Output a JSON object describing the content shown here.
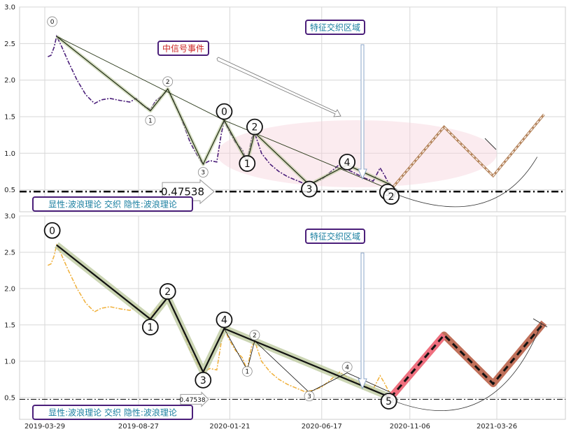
{
  "chart_data": [
    {
      "type": "line",
      "ylim": [
        0.2,
        3.0
      ],
      "yticks": [
        "3.0",
        "2.5",
        "2.0",
        "1.5",
        "1.0",
        "0.5"
      ],
      "price_color": "#4b1f7a",
      "price_points": [
        [
          "2019-04-03",
          2.32
        ],
        [
          "2019-04-08",
          2.34
        ],
        [
          "2019-04-13",
          2.45
        ],
        [
          "2019-04-17",
          2.6
        ],
        [
          "2019-04-24",
          2.48
        ],
        [
          "2019-05-06",
          2.25
        ],
        [
          "2019-05-20",
          2.0
        ],
        [
          "2019-06-03",
          1.8
        ],
        [
          "2019-06-17",
          1.68
        ],
        [
          "2019-06-28",
          1.73
        ],
        [
          "2019-07-12",
          1.75
        ],
        [
          "2019-07-29",
          1.72
        ],
        [
          "2019-08-13",
          1.7
        ],
        [
          "2019-08-23",
          1.75
        ],
        [
          "2019-09-05",
          1.64
        ],
        [
          "2019-09-15",
          1.6
        ],
        [
          "2019-09-24",
          1.72
        ],
        [
          "2019-10-06",
          1.8
        ],
        [
          "2019-10-13",
          1.88
        ],
        [
          "2019-10-22",
          1.72
        ],
        [
          "2019-11-03",
          1.5
        ],
        [
          "2019-11-18",
          1.15
        ],
        [
          "2019-12-01",
          0.95
        ],
        [
          "2019-12-09",
          0.85
        ],
        [
          "2019-12-20",
          0.9
        ],
        [
          "2019-12-31",
          0.88
        ],
        [
          "2020-01-07",
          1.25
        ],
        [
          "2020-01-12",
          1.45
        ],
        [
          "2020-01-20",
          1.3
        ],
        [
          "2020-01-30",
          1.15
        ],
        [
          "2020-02-10",
          1.05
        ],
        [
          "2020-02-18",
          0.88
        ],
        [
          "2020-02-25",
          1.2
        ],
        [
          "2020-03-01",
          1.28
        ],
        [
          "2020-03-12",
          1.0
        ],
        [
          "2020-03-26",
          0.85
        ],
        [
          "2020-04-09",
          0.75
        ],
        [
          "2020-04-23",
          0.68
        ],
        [
          "2020-05-07",
          0.63
        ],
        [
          "2020-05-21",
          0.58
        ],
        [
          "2020-06-04",
          0.6
        ],
        [
          "2020-06-18",
          0.65
        ],
        [
          "2020-07-02",
          0.75
        ],
        [
          "2020-07-16",
          0.85
        ],
        [
          "2020-07-28",
          0.78
        ],
        [
          "2020-08-11",
          0.72
        ],
        [
          "2020-08-25",
          0.66
        ],
        [
          "2020-09-08",
          0.62
        ],
        [
          "2020-09-19",
          0.8
        ],
        [
          "2020-09-26",
          0.7
        ],
        [
          "2020-10-02",
          0.6
        ],
        [
          "2020-10-06",
          0.57
        ]
      ],
      "wave_points": [
        [
          "2019-04-17",
          2.6
        ],
        [
          "2019-09-15",
          1.58
        ],
        [
          "2019-10-13",
          1.88
        ],
        [
          "2019-12-09",
          0.85
        ],
        [
          "2020-01-12",
          1.45
        ],
        [
          "2020-02-18",
          0.88
        ],
        [
          "2020-03-01",
          1.28
        ],
        [
          "2020-05-28",
          0.57
        ],
        [
          "2020-07-28",
          0.84
        ],
        [
          "2020-10-06",
          0.57
        ]
      ],
      "main_wave_points": [
        [
          "2019-04-17",
          2.6
        ],
        [
          "2020-01-12",
          1.45
        ],
        [
          "2020-10-06",
          0.5
        ]
      ],
      "projection_points": [
        [
          "2020-10-06",
          0.5
        ],
        [
          "2020-12-31",
          1.36
        ],
        [
          "2021-03-20",
          0.69
        ],
        [
          "2021-06-10",
          1.53
        ]
      ],
      "hline": 0.47538,
      "hline_label": "0.47538",
      "labels_small": [
        {
          "t": "0",
          "d": "2019-04-10",
          "v": 2.8
        },
        {
          "t": "1",
          "d": "2019-09-15",
          "v": 1.45
        },
        {
          "t": "2",
          "d": "2019-10-13",
          "v": 1.98
        },
        {
          "t": "3",
          "d": "2019-12-09",
          "v": 0.74
        },
        {
          "t": "0",
          "d": "2020-01-12",
          "v": 1.59
        },
        {
          "t": "5",
          "d": "2020-10-03",
          "v": 0.44
        },
        {
          "t": "2",
          "d": "2020-10-10",
          "v": 0.46
        }
      ],
      "labels_big": [
        {
          "t": "0",
          "d": "2020-01-12",
          "v": 1.57
        },
        {
          "t": "1",
          "d": "2020-02-18",
          "v": 0.86
        },
        {
          "t": "2",
          "d": "2020-03-01",
          "v": 1.36
        },
        {
          "t": "3",
          "d": "2020-05-28",
          "v": 0.51
        },
        {
          "t": "4",
          "d": "2020-07-28",
          "v": 0.88
        },
        {
          "t": "5",
          "d": "2020-10-01",
          "v": 0.47
        },
        {
          "t": "2",
          "d": "2020-10-07",
          "v": 0.41
        }
      ],
      "tag_signal": "中信号事件",
      "tag_zone": "特征交织区域",
      "tag_legend": "显性:波浪理论 交织 隐性:波浪理论"
    },
    {
      "type": "line",
      "ylim": [
        0.2,
        3.0
      ],
      "yticks": [
        "3.0",
        "2.5",
        "2.0",
        "1.5",
        "1.0",
        "0.5"
      ],
      "xticks": [
        "2019-03-29",
        "2019-08-27",
        "2020-01-21",
        "2020-06-17",
        "2020-11-06",
        "2021-03-26"
      ],
      "price_color": "#f0b03a",
      "main_wave_points": [
        [
          "2019-04-17",
          2.6
        ],
        [
          "2019-09-15",
          1.58
        ],
        [
          "2019-10-13",
          1.88
        ],
        [
          "2019-12-09",
          0.85
        ],
        [
          "2020-01-12",
          1.45
        ],
        [
          "2020-10-06",
          0.5
        ]
      ],
      "sub_wave_points": [
        [
          "2020-01-12",
          1.45
        ],
        [
          "2020-02-18",
          0.88
        ],
        [
          "2020-03-01",
          1.28
        ],
        [
          "2020-05-28",
          0.57
        ],
        [
          "2020-07-28",
          0.84
        ],
        [
          "2020-10-06",
          0.57
        ]
      ],
      "projection_points": [
        [
          "2020-10-06",
          0.5
        ],
        [
          "2020-12-31",
          1.36
        ],
        [
          "2021-03-20",
          0.69
        ],
        [
          "2021-06-10",
          1.53
        ]
      ],
      "hline": 0.47538,
      "hline_label": "0.47538",
      "labels_big": [
        {
          "t": "0",
          "d": "2019-04-10",
          "v": 2.8
        },
        {
          "t": "1",
          "d": "2019-09-15",
          "v": 1.47
        },
        {
          "t": "2",
          "d": "2019-10-13",
          "v": 1.96
        },
        {
          "t": "3",
          "d": "2019-12-09",
          "v": 0.74
        },
        {
          "t": "4",
          "d": "2020-01-12",
          "v": 1.57
        },
        {
          "t": "5",
          "d": "2020-10-03",
          "v": 0.45
        }
      ],
      "labels_small": [
        {
          "t": "4",
          "d": "2020-01-12",
          "v": 1.6
        },
        {
          "t": "1",
          "d": "2020-02-18",
          "v": 0.86
        },
        {
          "t": "2",
          "d": "2020-03-01",
          "v": 1.36
        },
        {
          "t": "3",
          "d": "2020-05-28",
          "v": 0.52
        },
        {
          "t": "4",
          "d": "2020-07-28",
          "v": 0.92
        },
        {
          "t": "2",
          "d": "2020-10-09",
          "v": 0.46
        }
      ],
      "tag_zone": "特征交织区域",
      "tag_legend": "显性:波浪理论 交织 隐性:波浪理论"
    }
  ]
}
